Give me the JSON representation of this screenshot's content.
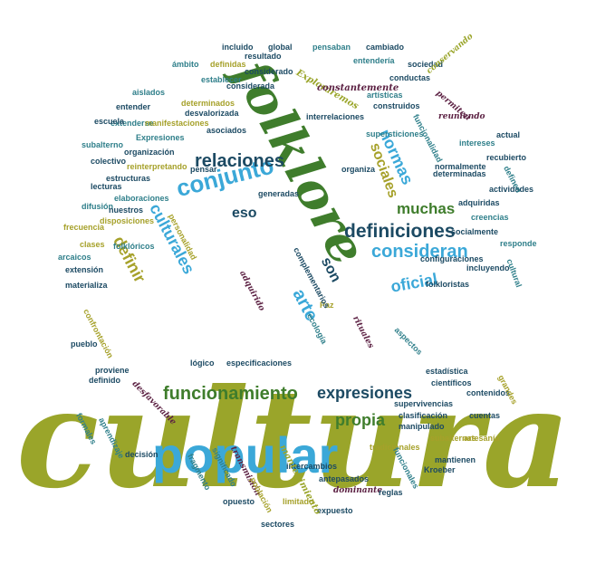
{
  "palette": {
    "olive": "#9aa52a",
    "sky": "#3ba8d8",
    "forest": "#3f7d2c",
    "navy": "#1c4a63",
    "plum": "#5c2143",
    "gold": "#a6a12a",
    "teal": "#2f7f8a"
  },
  "words": [
    {
      "text": "cultura",
      "color": "olive",
      "font": "c",
      "size": 150
    },
    {
      "text": "folklore",
      "color": "forest",
      "font": "c",
      "size": 56
    },
    {
      "text": "popular",
      "color": "sky",
      "font": "s",
      "size": 56
    },
    {
      "text": "conjunto",
      "color": "sky",
      "font": "s",
      "size": 26
    },
    {
      "text": "relaciones",
      "color": "navy",
      "font": "s",
      "size": 20
    },
    {
      "text": "definiciones",
      "color": "navy",
      "font": "s",
      "size": 21
    },
    {
      "text": "consideran",
      "color": "sky",
      "font": "s",
      "size": 20
    },
    {
      "text": "oficial",
      "color": "sky",
      "font": "s",
      "size": 18
    },
    {
      "text": "muchas",
      "color": "forest",
      "font": "s",
      "size": 17
    },
    {
      "text": "normas",
      "color": "sky",
      "font": "s",
      "size": 18
    },
    {
      "text": "sociales",
      "color": "gold",
      "font": "s",
      "size": 16
    },
    {
      "text": "culturales",
      "color": "sky",
      "font": "s",
      "size": 18
    },
    {
      "text": "definir",
      "color": "gold",
      "font": "s",
      "size": 18
    },
    {
      "text": "eso",
      "color": "navy",
      "font": "s",
      "size": 16
    },
    {
      "text": "son",
      "color": "navy",
      "font": "s",
      "size": 16
    },
    {
      "text": "arte",
      "color": "sky",
      "font": "s",
      "size": 20
    },
    {
      "text": "funcionamiento",
      "color": "forest",
      "font": "s",
      "size": 20
    },
    {
      "text": "expresiones",
      "color": "navy",
      "font": "s",
      "size": 18
    },
    {
      "text": "propia",
      "color": "forest",
      "font": "s",
      "size": 18
    },
    {
      "text": "Exploraremos",
      "color": "olive",
      "font": "c",
      "size": 10
    },
    {
      "text": "constantemente",
      "color": "plum",
      "font": "c",
      "size": 10
    },
    {
      "text": "interrelaciones",
      "color": "navy",
      "font": "s",
      "size": 9
    },
    {
      "text": "supersticiones",
      "color": "teal",
      "font": "s",
      "size": 9
    },
    {
      "text": "incluido",
      "color": "navy",
      "font": "s",
      "size": 9
    },
    {
      "text": "global",
      "color": "navy",
      "font": "s",
      "size": 9
    },
    {
      "text": "pensaban",
      "color": "teal",
      "font": "s",
      "size": 9
    },
    {
      "text": "cambiado",
      "color": "navy",
      "font": "s",
      "size": 9
    },
    {
      "text": "resultado",
      "color": "navy",
      "font": "s",
      "size": 9
    },
    {
      "text": "entendería",
      "color": "teal",
      "font": "s",
      "size": 9
    },
    {
      "text": "sociedad",
      "color": "navy",
      "font": "s",
      "size": 9
    },
    {
      "text": "ámbito",
      "color": "teal",
      "font": "s",
      "size": 9
    },
    {
      "text": "definidas",
      "color": "gold",
      "font": "s",
      "size": 9
    },
    {
      "text": "considerado",
      "color": "navy",
      "font": "s",
      "size": 9
    },
    {
      "text": "conductas",
      "color": "navy",
      "font": "s",
      "size": 9
    },
    {
      "text": "establecer",
      "color": "teal",
      "font": "s",
      "size": 9
    },
    {
      "text": "considerada",
      "color": "navy",
      "font": "s",
      "size": 9
    },
    {
      "text": "aislados",
      "color": "teal",
      "font": "s",
      "size": 9
    },
    {
      "text": "determinados",
      "color": "gold",
      "font": "s",
      "size": 9
    },
    {
      "text": "artísticas",
      "color": "teal",
      "font": "s",
      "size": 9
    },
    {
      "text": "construidos",
      "color": "navy",
      "font": "s",
      "size": 9
    },
    {
      "text": "entender",
      "color": "navy",
      "font": "s",
      "size": 9
    },
    {
      "text": "desvalorizada",
      "color": "navy",
      "font": "s",
      "size": 9
    },
    {
      "text": "extenderse",
      "color": "teal",
      "font": "s",
      "size": 9
    },
    {
      "text": "manifestaciones",
      "color": "gold",
      "font": "s",
      "size": 9
    },
    {
      "text": "escuela",
      "color": "navy",
      "font": "s",
      "size": 9
    },
    {
      "text": "asociados",
      "color": "navy",
      "font": "s",
      "size": 9
    },
    {
      "text": "Expresiones",
      "color": "teal",
      "font": "s",
      "size": 9
    },
    {
      "text": "subalterno",
      "color": "teal",
      "font": "s",
      "size": 9
    },
    {
      "text": "organización",
      "color": "navy",
      "font": "s",
      "size": 9
    },
    {
      "text": "colectivo",
      "color": "navy",
      "font": "s",
      "size": 9
    },
    {
      "text": "reinterpretando",
      "color": "gold",
      "font": "s",
      "size": 9
    },
    {
      "text": "pensar",
      "color": "navy",
      "font": "s",
      "size": 9
    },
    {
      "text": "organiza",
      "color": "navy",
      "font": "s",
      "size": 9
    },
    {
      "text": "estructuras",
      "color": "navy",
      "font": "s",
      "size": 9
    },
    {
      "text": "lecturas",
      "color": "navy",
      "font": "s",
      "size": 9
    },
    {
      "text": "elaboraciones",
      "color": "teal",
      "font": "s",
      "size": 9
    },
    {
      "text": "difusión",
      "color": "teal",
      "font": "s",
      "size": 9
    },
    {
      "text": "generadas",
      "color": "navy",
      "font": "s",
      "size": 9
    },
    {
      "text": "nuestros",
      "color": "navy",
      "font": "s",
      "size": 9
    },
    {
      "text": "disposiciones",
      "color": "gold",
      "font": "s",
      "size": 9
    },
    {
      "text": "clases",
      "color": "gold",
      "font": "s",
      "size": 9
    },
    {
      "text": "folklóricos",
      "color": "teal",
      "font": "s",
      "size": 9
    },
    {
      "text": "arcaicos",
      "color": "teal",
      "font": "s",
      "size": 9
    },
    {
      "text": "extensión",
      "color": "navy",
      "font": "s",
      "size": 9
    },
    {
      "text": "materializa",
      "color": "navy",
      "font": "s",
      "size": 9
    },
    {
      "text": "reuniendo",
      "color": "plum",
      "font": "c",
      "size": 9
    },
    {
      "text": "actual",
      "color": "navy",
      "font": "s",
      "size": 9
    },
    {
      "text": "intereses",
      "color": "teal",
      "font": "s",
      "size": 9
    },
    {
      "text": "recubierto",
      "color": "navy",
      "font": "s",
      "size": 9
    },
    {
      "text": "normalmente",
      "color": "navy",
      "font": "s",
      "size": 9
    },
    {
      "text": "determinadas",
      "color": "navy",
      "font": "s",
      "size": 9
    },
    {
      "text": "actividades",
      "color": "navy",
      "font": "s",
      "size": 9
    },
    {
      "text": "adquiridas",
      "color": "navy",
      "font": "s",
      "size": 9
    },
    {
      "text": "creencias",
      "color": "teal",
      "font": "s",
      "size": 9
    },
    {
      "text": "socialmente",
      "color": "navy",
      "font": "s",
      "size": 9
    },
    {
      "text": "responde",
      "color": "teal",
      "font": "s",
      "size": 9
    },
    {
      "text": "configuraciones",
      "color": "navy",
      "font": "s",
      "size": 9
    },
    {
      "text": "incluyendo",
      "color": "navy",
      "font": "s",
      "size": 9
    },
    {
      "text": "folkloristas",
      "color": "navy",
      "font": "s",
      "size": 9
    },
    {
      "text": "rituales",
      "color": "plum",
      "font": "c",
      "size": 9
    },
    {
      "text": "Paz",
      "color": "gold",
      "font": "s",
      "size": 9
    },
    {
      "text": "ecología",
      "color": "teal",
      "font": "s",
      "size": 9
    },
    {
      "text": "pueblo",
      "color": "navy",
      "font": "s",
      "size": 9
    },
    {
      "text": "estadística",
      "color": "navy",
      "font": "s",
      "size": 9
    },
    {
      "text": "científicos",
      "color": "navy",
      "font": "s",
      "size": 9
    },
    {
      "text": "lógico",
      "color": "navy",
      "font": "s",
      "size": 9
    },
    {
      "text": "especificaciones",
      "color": "navy",
      "font": "s",
      "size": 9
    },
    {
      "text": "proviene",
      "color": "navy",
      "font": "s",
      "size": 9
    },
    {
      "text": "definido",
      "color": "navy",
      "font": "s",
      "size": 9
    },
    {
      "text": "desfavorable",
      "color": "plum",
      "font": "c",
      "size": 9
    },
    {
      "text": "aprendizaje",
      "color": "teal",
      "font": "s",
      "size": 9
    },
    {
      "text": "formales",
      "color": "teal",
      "font": "s",
      "size": 9
    },
    {
      "text": "decisión",
      "color": "navy",
      "font": "s",
      "size": 9
    },
    {
      "text": "supervivencias",
      "color": "navy",
      "font": "s",
      "size": 9
    },
    {
      "text": "clasificación",
      "color": "navy",
      "font": "s",
      "size": 9
    },
    {
      "text": "contenidos",
      "color": "navy",
      "font": "s",
      "size": 9
    },
    {
      "text": "cuentas",
      "color": "navy",
      "font": "s",
      "size": 9
    },
    {
      "text": "manipulado",
      "color": "navy",
      "font": "s",
      "size": 9
    },
    {
      "text": "subalternas",
      "color": "gold",
      "font": "s",
      "size": 9
    },
    {
      "text": "artesanía",
      "color": "gold",
      "font": "s",
      "size": 9
    },
    {
      "text": "tradicionales",
      "color": "gold",
      "font": "s",
      "size": 9
    },
    {
      "text": "funcionales",
      "color": "teal",
      "font": "s",
      "size": 9
    },
    {
      "text": "mantienen",
      "color": "navy",
      "font": "s",
      "size": 9
    },
    {
      "text": "Kroeber",
      "color": "navy",
      "font": "s",
      "size": 9
    },
    {
      "text": "intercambios",
      "color": "navy",
      "font": "s",
      "size": 9
    },
    {
      "text": "antepasados",
      "color": "navy",
      "font": "s",
      "size": 9
    },
    {
      "text": "dominante",
      "color": "plum",
      "font": "c",
      "size": 9
    },
    {
      "text": "reglas",
      "color": "navy",
      "font": "s",
      "size": 9
    },
    {
      "text": "opuesto",
      "color": "navy",
      "font": "s",
      "size": 9
    },
    {
      "text": "limitado",
      "color": "gold",
      "font": "s",
      "size": 9
    },
    {
      "text": "expuesto",
      "color": "navy",
      "font": "s",
      "size": 9
    },
    {
      "text": "sectores",
      "color": "navy",
      "font": "s",
      "size": 9
    },
    {
      "text": "significado",
      "color": "teal",
      "font": "s",
      "size": 9
    },
    {
      "text": "fragmento",
      "color": "teal",
      "font": "s",
      "size": 9
    },
    {
      "text": "transmisión",
      "color": "plum",
      "font": "c",
      "size": 9
    },
    {
      "text": "mantenimiento",
      "color": "olive",
      "font": "c",
      "size": 10
    },
    {
      "text": "población",
      "color": "gold",
      "font": "s",
      "size": 9
    },
    {
      "text": "adquirido",
      "color": "plum",
      "font": "c",
      "size": 9
    },
    {
      "text": "personalidad",
      "color": "gold",
      "font": "s",
      "size": 9
    },
    {
      "text": "confrontación",
      "color": "gold",
      "font": "s",
      "size": 9
    },
    {
      "text": "complementarios",
      "color": "navy",
      "font": "s",
      "size": 9
    },
    {
      "text": "frecuencia",
      "color": "gold",
      "font": "s",
      "size": 9
    },
    {
      "text": "funcionalidad",
      "color": "teal",
      "font": "s",
      "size": 9
    },
    {
      "text": "conservando",
      "color": "olive",
      "font": "c",
      "size": 9
    },
    {
      "text": "permiten",
      "color": "plum",
      "font": "c",
      "size": 9
    },
    {
      "text": "definen",
      "color": "teal",
      "font": "s",
      "size": 9
    },
    {
      "text": "cultural",
      "color": "teal",
      "font": "s",
      "size": 9
    },
    {
      "text": "grandes",
      "color": "gold",
      "font": "s",
      "size": 9
    },
    {
      "text": "aspectos",
      "color": "teal",
      "font": "s",
      "size": 9
    }
  ]
}
